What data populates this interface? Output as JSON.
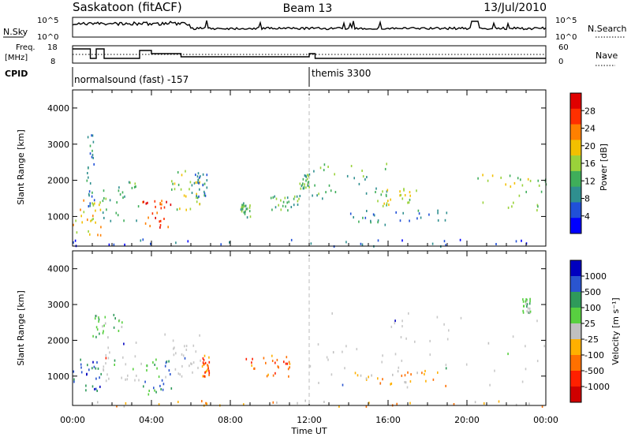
{
  "header": {
    "station": "Saskatoon (fitACF)",
    "beam": "Beam 13",
    "date": "13/Jul/2010"
  },
  "top_panels": {
    "nsky_label": "N.Sky",
    "nsky_ticks": [
      "10^5",
      "10^0"
    ],
    "nsearch_label": "N.Search",
    "nsearch_ticks": [
      "10^5",
      "10^0"
    ],
    "freq_label_1": "Freq.",
    "freq_label_2": "[MHz]",
    "freq_ticks": [
      "18",
      "8"
    ],
    "nave_label": "Nave",
    "nave_ticks": [
      "60",
      "0"
    ],
    "cpid_label": "CPID",
    "cpid_segments": [
      {
        "start_hour": 0,
        "label": "normalsound (fast) -157"
      },
      {
        "start_hour": 12,
        "label": "themis 3300"
      }
    ]
  },
  "colors": {
    "power": [
      "#0000ff",
      "#2050d8",
      "#2f8f8f",
      "#3fae5a",
      "#9ad23a",
      "#f2c000",
      "#ff8000",
      "#ff3000",
      "#e00000"
    ],
    "velocity": [
      "#0000c0",
      "#2a55d0",
      "#2f9a5a",
      "#58d040",
      "#c0c0c0",
      "#ffb000",
      "#ff7000",
      "#ff2000",
      "#d00000"
    ],
    "gray": "#c8c8c8"
  },
  "chart_data": [
    {
      "type": "heatmap",
      "title": "Power",
      "xlabel": "Time UT",
      "ylabel": "Slant Range [km]",
      "x_range_hours": [
        0,
        24
      ],
      "ylim": [
        180,
        4500
      ],
      "x_ticks": [
        "00:00",
        "04:00",
        "08:00",
        "12:00",
        "16:00",
        "20:00",
        "00:00"
      ],
      "y_ticks": [
        1000,
        2000,
        3000,
        4000
      ],
      "colorbar": {
        "label": "Power [dB]",
        "ticks": [
          4,
          8,
          12,
          16,
          20,
          24,
          28
        ]
      },
      "regions": [
        {
          "h0": 0.0,
          "h1": 1.5,
          "r0": 500,
          "r1": 1500,
          "level": 5
        },
        {
          "h0": 0.7,
          "h1": 1.1,
          "r0": 1300,
          "r1": 3400,
          "level": 2
        },
        {
          "h0": 1.5,
          "h1": 3.5,
          "r0": 900,
          "r1": 2000,
          "level": 3
        },
        {
          "h0": 3.5,
          "h1": 5.0,
          "r0": 700,
          "r1": 1500,
          "level": 7
        },
        {
          "h0": 5.0,
          "h1": 6.5,
          "r0": 1200,
          "r1": 2300,
          "level": 4
        },
        {
          "h0": 6.0,
          "h1": 6.8,
          "r0": 1500,
          "r1": 2300,
          "level": 2
        },
        {
          "h0": 8.5,
          "h1": 9.0,
          "r0": 1000,
          "r1": 1400,
          "level": 3
        },
        {
          "h0": 10.0,
          "h1": 11.5,
          "r0": 1200,
          "r1": 1600,
          "level": 3
        },
        {
          "h0": 11.5,
          "h1": 12.0,
          "r0": 1800,
          "r1": 2200,
          "level": 3
        },
        {
          "h0": 12.0,
          "h1": 16.0,
          "r0": 1500,
          "r1": 2500,
          "level": 3
        },
        {
          "h0": 14.0,
          "h1": 19.0,
          "r0": 800,
          "r1": 1200,
          "level": 2
        },
        {
          "h0": 15.0,
          "h1": 17.5,
          "r0": 1300,
          "r1": 1800,
          "level": 4
        },
        {
          "h0": 20.5,
          "h1": 24.0,
          "r0": 1200,
          "r1": 2200,
          "level": 4
        },
        {
          "h0": 0.0,
          "h1": 24.0,
          "r0": 180,
          "r1": 400,
          "level": 1
        }
      ]
    },
    {
      "type": "heatmap",
      "title": "Velocity",
      "xlabel": "Time UT",
      "ylabel": "Slant Range [km]",
      "x_range_hours": [
        0,
        24
      ],
      "ylim": [
        180,
        4500
      ],
      "x_ticks": [
        "00:00",
        "04:00",
        "08:00",
        "12:00",
        "16:00",
        "20:00",
        "00:00"
      ],
      "y_ticks": [
        1000,
        2000,
        3000,
        4000
      ],
      "colorbar": {
        "label": "Velocity [m s⁻¹]",
        "ticks": [
          "1000",
          "500",
          "100",
          "25",
          "-25",
          "-100",
          "-500",
          "-1000"
        ]
      },
      "regions": [
        {
          "h0": 0.0,
          "h1": 1.5,
          "r0": 600,
          "r1": 1500,
          "level": 1
        },
        {
          "h0": 1.0,
          "h1": 2.5,
          "r0": 2000,
          "r1": 2800,
          "level": 3
        },
        {
          "h0": 1.5,
          "h1": 3.5,
          "r0": 800,
          "r1": 2000,
          "level": "gray"
        },
        {
          "h0": 3.5,
          "h1": 5.0,
          "r0": 500,
          "r1": 1500,
          "level": 2
        },
        {
          "h0": 4.5,
          "h1": 6.5,
          "r0": 1000,
          "r1": 2200,
          "level": "gray"
        },
        {
          "h0": 6.5,
          "h1": 7.0,
          "r0": 1000,
          "r1": 1600,
          "level": 6
        },
        {
          "h0": 8.7,
          "h1": 11.0,
          "r0": 1000,
          "r1": 1600,
          "level": 6
        },
        {
          "h0": 12.0,
          "h1": 24.0,
          "r0": 700,
          "r1": 2800,
          "level": "gray"
        },
        {
          "h0": 14.0,
          "h1": 19.0,
          "r0": 800,
          "r1": 1200,
          "level": 5
        },
        {
          "h0": 22.8,
          "h1": 23.2,
          "r0": 2800,
          "r1": 3200,
          "level": 3
        },
        {
          "h0": 0.0,
          "h1": 24.0,
          "r0": 180,
          "r1": 350,
          "level": 5
        }
      ]
    }
  ]
}
